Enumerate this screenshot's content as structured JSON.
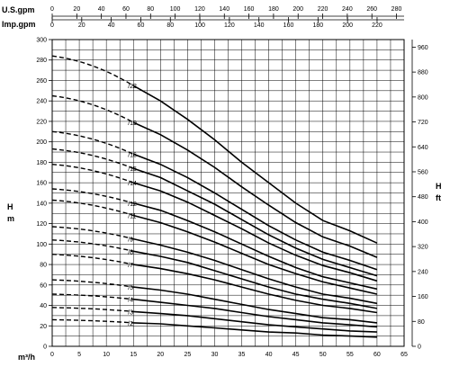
{
  "chart_data": {
    "type": "line",
    "axes": {
      "bottom": {
        "label": "m³/h",
        "range": [
          0,
          65
        ],
        "ticks": [
          0,
          5,
          10,
          15,
          20,
          25,
          30,
          35,
          40,
          45,
          50,
          55,
          60,
          65
        ]
      },
      "left": {
        "label_line1": "H",
        "label_line2": "m",
        "range": [
          0,
          300
        ],
        "ticks": [
          0,
          20,
          40,
          60,
          80,
          100,
          120,
          140,
          160,
          180,
          200,
          220,
          240,
          260,
          280,
          300
        ]
      },
      "right": {
        "label_line1": "H",
        "label_line2": "ft",
        "range": [
          0,
          984.25
        ],
        "ticks": [
          0,
          80,
          160,
          240,
          320,
          400,
          480,
          560,
          640,
          720,
          800,
          880,
          960
        ]
      },
      "top1": {
        "label": "U.S.gpm",
        "range": [
          0,
          286.2
        ],
        "ticks": [
          0,
          20,
          40,
          60,
          80,
          100,
          120,
          140,
          160,
          180,
          200,
          220,
          240,
          260,
          280
        ]
      },
      "top2": {
        "label": "Imp.gpm",
        "range": [
          0,
          238.3
        ],
        "ticks": [
          0,
          20,
          40,
          60,
          80,
          100,
          120,
          140,
          160,
          180,
          200,
          220
        ]
      }
    },
    "grid": true,
    "legend": "none",
    "dashed_range": [
      0,
      15
    ],
    "solid_range": [
      15,
      60
    ],
    "series": [
      {
        "name": "/22",
        "shutoff": 284,
        "points": [
          [
            15,
            255
          ],
          [
            20,
            240
          ],
          [
            25,
            222
          ],
          [
            30,
            202
          ],
          [
            35,
            180
          ],
          [
            40,
            160
          ],
          [
            45,
            140
          ],
          [
            50,
            123
          ],
          [
            55,
            113
          ],
          [
            60,
            101
          ]
        ]
      },
      {
        "name": "/19",
        "shutoff": 245,
        "points": [
          [
            15,
            219
          ],
          [
            20,
            207
          ],
          [
            25,
            192
          ],
          [
            30,
            175
          ],
          [
            35,
            156
          ],
          [
            40,
            138
          ],
          [
            45,
            121
          ],
          [
            50,
            107
          ],
          [
            55,
            98
          ],
          [
            60,
            87
          ]
        ]
      },
      {
        "name": "/16",
        "shutoff": 210,
        "points": [
          [
            15,
            188
          ],
          [
            20,
            178
          ],
          [
            25,
            165
          ],
          [
            30,
            150
          ],
          [
            35,
            134
          ],
          [
            40,
            118
          ],
          [
            45,
            104
          ],
          [
            50,
            92
          ],
          [
            55,
            84
          ],
          [
            60,
            75
          ]
        ]
      },
      {
        "name": "/15",
        "shutoff": 193,
        "points": [
          [
            15,
            174
          ],
          [
            20,
            165
          ],
          [
            25,
            152
          ],
          [
            30,
            139
          ],
          [
            35,
            124
          ],
          [
            40,
            109
          ],
          [
            45,
            96
          ],
          [
            50,
            85
          ],
          [
            55,
            77
          ],
          [
            60,
            69
          ]
        ]
      },
      {
        "name": "/14",
        "shutoff": 178,
        "points": [
          [
            15,
            160
          ],
          [
            20,
            152
          ],
          [
            25,
            141
          ],
          [
            30,
            128
          ],
          [
            35,
            115
          ],
          [
            40,
            101
          ],
          [
            45,
            89
          ],
          [
            50,
            79
          ],
          [
            55,
            72
          ],
          [
            60,
            64
          ]
        ]
      },
      {
        "name": "/12",
        "shutoff": 154,
        "points": [
          [
            15,
            140
          ],
          [
            20,
            133
          ],
          [
            25,
            123
          ],
          [
            30,
            112
          ],
          [
            35,
            100
          ],
          [
            40,
            88
          ],
          [
            45,
            77
          ],
          [
            50,
            68
          ],
          [
            55,
            62
          ],
          [
            60,
            56
          ]
        ]
      },
      {
        "name": "/11",
        "shutoff": 143,
        "points": [
          [
            15,
            128
          ],
          [
            20,
            121
          ],
          [
            25,
            112
          ],
          [
            30,
            102
          ],
          [
            35,
            91
          ],
          [
            40,
            80
          ],
          [
            45,
            71
          ],
          [
            50,
            63
          ],
          [
            55,
            57
          ],
          [
            60,
            51
          ]
        ]
      },
      {
        "name": "/9",
        "shutoff": 117,
        "points": [
          [
            15,
            105
          ],
          [
            20,
            99
          ],
          [
            25,
            92
          ],
          [
            30,
            84
          ],
          [
            35,
            75
          ],
          [
            40,
            66
          ],
          [
            45,
            58
          ],
          [
            50,
            51
          ],
          [
            55,
            47
          ],
          [
            60,
            42
          ]
        ]
      },
      {
        "name": "/8",
        "shutoff": 104,
        "points": [
          [
            15,
            93
          ],
          [
            20,
            88
          ],
          [
            25,
            82
          ],
          [
            30,
            74
          ],
          [
            35,
            66
          ],
          [
            40,
            58
          ],
          [
            45,
            51
          ],
          [
            50,
            46
          ],
          [
            55,
            42
          ],
          [
            60,
            37
          ]
        ]
      },
      {
        "name": "/7",
        "shutoff": 90,
        "points": [
          [
            15,
            80
          ],
          [
            20,
            76
          ],
          [
            25,
            71
          ],
          [
            30,
            65
          ],
          [
            35,
            58
          ],
          [
            40,
            51
          ],
          [
            45,
            45
          ],
          [
            50,
            40
          ],
          [
            55,
            37
          ],
          [
            60,
            33
          ]
        ]
      },
      {
        "name": "/5",
        "shutoff": 65,
        "points": [
          [
            15,
            58
          ],
          [
            20,
            55
          ],
          [
            25,
            51
          ],
          [
            30,
            46
          ],
          [
            35,
            41
          ],
          [
            40,
            36
          ],
          [
            45,
            32
          ],
          [
            50,
            28
          ],
          [
            55,
            26
          ],
          [
            60,
            23
          ]
        ]
      },
      {
        "name": "/4",
        "shutoff": 51,
        "points": [
          [
            15,
            46
          ],
          [
            20,
            43
          ],
          [
            25,
            40
          ],
          [
            30,
            37
          ],
          [
            35,
            33
          ],
          [
            40,
            29
          ],
          [
            45,
            26
          ],
          [
            50,
            23
          ],
          [
            55,
            21
          ],
          [
            60,
            19
          ]
        ]
      },
      {
        "name": "/3",
        "shutoff": 38,
        "points": [
          [
            15,
            34
          ],
          [
            20,
            32
          ],
          [
            25,
            30
          ],
          [
            30,
            27
          ],
          [
            35,
            24
          ],
          [
            40,
            21
          ],
          [
            45,
            19
          ],
          [
            50,
            17
          ],
          [
            55,
            15
          ],
          [
            60,
            14
          ]
        ]
      },
      {
        "name": "/2",
        "shutoff": 26,
        "points": [
          [
            15,
            23
          ],
          [
            20,
            22
          ],
          [
            25,
            20
          ],
          [
            30,
            18
          ],
          [
            35,
            16
          ],
          [
            40,
            14
          ],
          [
            45,
            13
          ],
          [
            50,
            11
          ],
          [
            55,
            10
          ],
          [
            60,
            9
          ]
        ]
      }
    ]
  }
}
